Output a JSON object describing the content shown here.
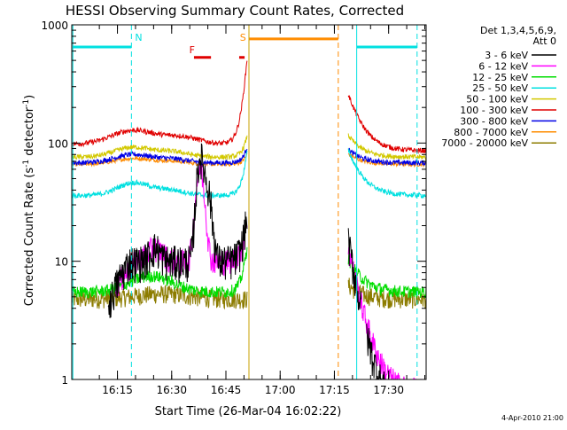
{
  "chart_data": {
    "type": "line",
    "title": "HESSI Observing Summary Count Rates, Corrected",
    "xlabel": "Start Time (26-Mar-04 16:02:22)",
    "ylabel_main": "Corrected Count Rate (s",
    "ylabel_sup1": "-1",
    "ylabel_mid": " detector",
    "ylabel_sup2": "-1",
    "ylabel_end": ")",
    "y_scale": "log",
    "ylim": [
      1,
      1000
    ],
    "xlim_minutes": [
      0,
      98
    ],
    "y_ticks": [
      {
        "value": 1,
        "label": "1"
      },
      {
        "value": 10,
        "label": "10"
      },
      {
        "value": 100,
        "label": "100"
      },
      {
        "value": 1000,
        "label": "1000"
      }
    ],
    "x_ticks": [
      {
        "minute": 12.63,
        "label": "16:15"
      },
      {
        "minute": 27.63,
        "label": "16:30"
      },
      {
        "minute": 42.63,
        "label": "16:45"
      },
      {
        "minute": 57.63,
        "label": "17:00"
      },
      {
        "minute": 72.63,
        "label": "17:15"
      },
      {
        "minute": 87.63,
        "label": "17:30"
      }
    ],
    "legend": {
      "header1": "Det 1,3,4,5,6,9,",
      "header2": "Att 0",
      "placement": "right-outside"
    },
    "footer": "4-Apr-2010 21:00",
    "series": [
      {
        "name": "3 - 6 keV",
        "color": "#000000"
      },
      {
        "name": "6 - 12 keV",
        "color": "#ff00ff"
      },
      {
        "name": "12 - 25 keV",
        "color": "#00dd00"
      },
      {
        "name": "25 - 50 keV",
        "color": "#00e0e0"
      },
      {
        "name": "50 - 100 keV",
        "color": "#d2c800"
      },
      {
        "name": "100 - 300 keV",
        "color": "#e00000"
      },
      {
        "name": "300 - 800 keV",
        "color": "#0000e6"
      },
      {
        "name": "800 - 7000 keV",
        "color": "#ff8c00"
      },
      {
        "name": "7000 - 20000 keV",
        "color": "#8c7c00"
      }
    ],
    "markers": [
      {
        "letter": "N",
        "color": "#00e0e0",
        "minute": 16.5
      },
      {
        "letter": "F",
        "color": "#e00000",
        "minute": 31.5
      },
      {
        "letter": "S",
        "color": "#ff8c00",
        "minute": 45.5
      }
    ],
    "status_bars": [
      {
        "color": "#00e0e0",
        "start": 0.3,
        "end": 16.5,
        "level": 650
      },
      {
        "color": "#00e0e0",
        "start": 78.8,
        "end": 95.5,
        "level": 650
      },
      {
        "color": "#e00000",
        "start": 33.8,
        "end": 38.5,
        "level": 530
      },
      {
        "color": "#e00000",
        "start": 46.3,
        "end": 47.8,
        "level": 530
      },
      {
        "color": "#ff8c00",
        "start": 49.0,
        "end": 73.7,
        "level": 760
      }
    ],
    "vlines": [
      {
        "color": "#00e0e0",
        "minute": 0.3,
        "style": "solid"
      },
      {
        "color": "#00e0e0",
        "minute": 16.5,
        "style": "dashed"
      },
      {
        "color": "#c8a000",
        "minute": 49.0,
        "style": "solid"
      },
      {
        "color": "#ff8c00",
        "minute": 73.7,
        "style": "dashed"
      },
      {
        "color": "#00e0e0",
        "minute": 78.8,
        "style": "solid"
      },
      {
        "color": "#00e0e0",
        "minute": 95.5,
        "style": "dashed"
      }
    ],
    "segments": [
      {
        "start": 0,
        "end": 48.5
      },
      {
        "start": 76.5,
        "end": 98
      }
    ]
  }
}
